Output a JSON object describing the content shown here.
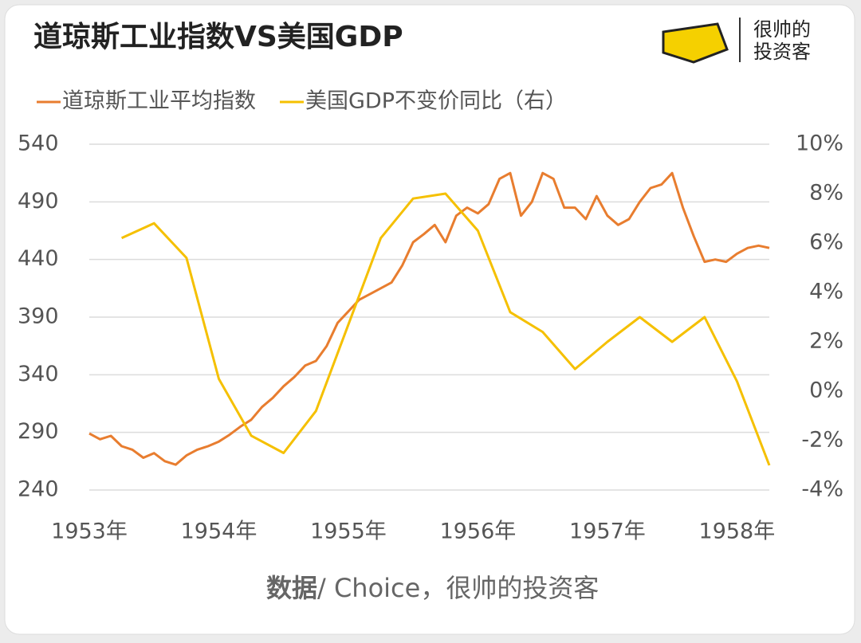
{
  "chart_data": {
    "type": "line",
    "title": "道琼斯工业指数VS美国GDP",
    "brand": [
      "很帅的",
      "投资客"
    ],
    "source_bold": "数据",
    "source": "/ Choice，很帅的投资客",
    "xlim": [
      1953,
      1958.25
    ],
    "xticks": [
      {
        "value": 1953,
        "label": "1953年"
      },
      {
        "value": 1954,
        "label": "1954年"
      },
      {
        "value": 1955,
        "label": "1955年"
      },
      {
        "value": 1956,
        "label": "1956年"
      },
      {
        "value": 1957,
        "label": "1957年"
      },
      {
        "value": 1958,
        "label": "1958年"
      }
    ],
    "ylim": [
      240,
      540
    ],
    "yticks": [
      240,
      290,
      340,
      390,
      440,
      490,
      540
    ],
    "y2lim": [
      -4,
      10
    ],
    "y2ticks": [
      {
        "value": -4,
        "label": "-4%"
      },
      {
        "value": -2,
        "label": "-2%"
      },
      {
        "value": 0,
        "label": "0%"
      },
      {
        "value": 2,
        "label": "2%"
      },
      {
        "value": 4,
        "label": "4%"
      },
      {
        "value": 6,
        "label": "6%"
      },
      {
        "value": 8,
        "label": "8%"
      },
      {
        "value": 10,
        "label": "10%"
      }
    ],
    "grid": true,
    "legend": "top-left",
    "series": [
      {
        "name": "道琼斯工业平均指数",
        "color": "#e87d2f",
        "x": [
          1953,
          1953.083,
          1953.167,
          1953.25,
          1953.333,
          1953.417,
          1953.5,
          1953.583,
          1953.667,
          1953.75,
          1953.833,
          1953.917,
          1954,
          1954.083,
          1954.167,
          1954.25,
          1954.333,
          1954.417,
          1954.5,
          1954.583,
          1954.667,
          1954.75,
          1954.833,
          1954.917,
          1955,
          1955.083,
          1955.167,
          1955.25,
          1955.333,
          1955.417,
          1955.5,
          1955.583,
          1955.667,
          1955.75,
          1955.833,
          1955.917,
          1956,
          1956.083,
          1956.167,
          1956.25,
          1956.333,
          1956.417,
          1956.5,
          1956.583,
          1956.667,
          1956.75,
          1956.833,
          1956.917,
          1957,
          1957.083,
          1957.167,
          1957.25,
          1957.333,
          1957.417,
          1957.5,
          1957.583,
          1957.667,
          1957.75,
          1957.833,
          1957.917,
          1958,
          1958.083,
          1958.167,
          1958.25
        ],
        "values": [
          289,
          284,
          287,
          278,
          275,
          268,
          272,
          265,
          262,
          270,
          275,
          278,
          282,
          288,
          295,
          301,
          312,
          320,
          330,
          338,
          348,
          352,
          365,
          385,
          395,
          405,
          410,
          415,
          420,
          435,
          455,
          462,
          470,
          455,
          478,
          485,
          480,
          488,
          510,
          515,
          478,
          490,
          515,
          510,
          485,
          485,
          475,
          495,
          478,
          470,
          475,
          490,
          502,
          505,
          515,
          485,
          460,
          438,
          440,
          438,
          445,
          450,
          452,
          450
        ]
      },
      {
        "name": "美国GDP不变价同比（右）",
        "color": "#f5c000",
        "axis": "y2",
        "x": [
          1953.25,
          1953.5,
          1953.75,
          1954,
          1954.25,
          1954.5,
          1954.75,
          1955,
          1955.25,
          1955.5,
          1955.75,
          1956,
          1956.25,
          1956.5,
          1956.75,
          1957,
          1957.25,
          1957.5,
          1957.75,
          1958,
          1958.25
        ],
        "values": [
          6.2,
          6.8,
          5.4,
          0.5,
          -1.8,
          -2.5,
          -0.8,
          2.7,
          6.2,
          7.8,
          8.0,
          6.5,
          3.2,
          2.4,
          0.9,
          2.0,
          3.0,
          2.0,
          3.0,
          0.4,
          -3.0
        ]
      }
    ]
  }
}
